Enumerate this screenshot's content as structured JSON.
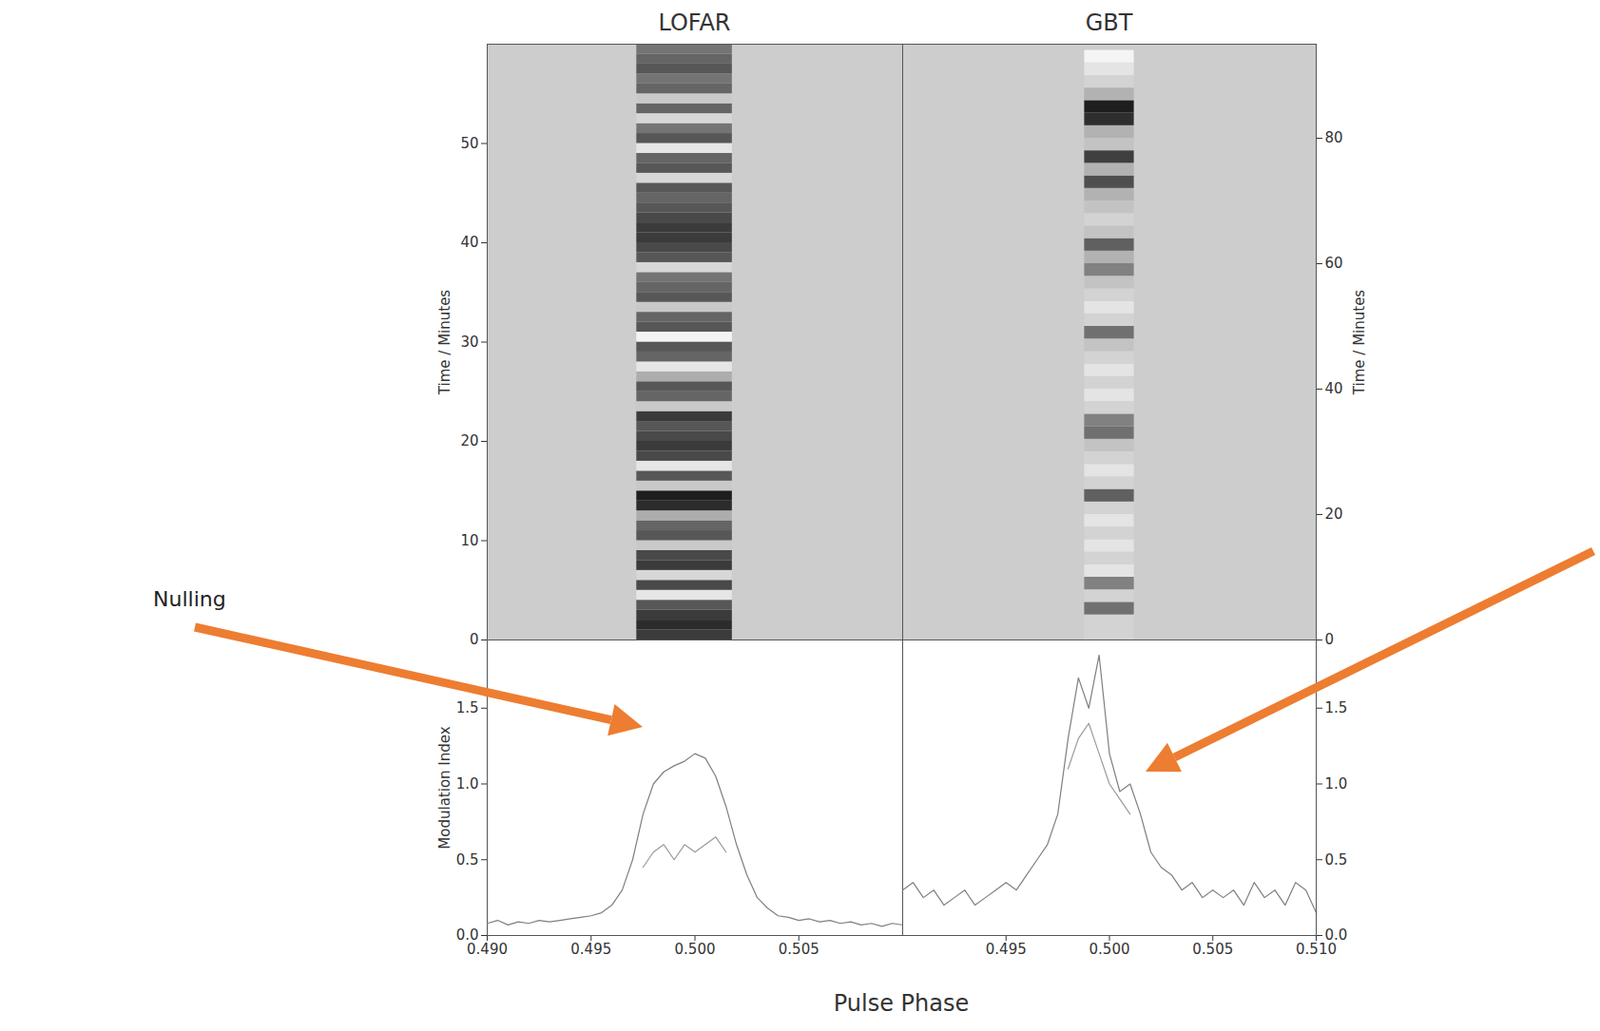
{
  "chart_data": [
    {
      "type": "waterfall",
      "title": "LOFAR",
      "ylabel": "Time / Minutes",
      "xlim": [
        0.49,
        0.51
      ],
      "ylim": [
        0,
        60
      ],
      "yticks": [
        0,
        10,
        20,
        30,
        40,
        50
      ],
      "tick_labels": "y",
      "pulse_window": [
        0.4972,
        0.5018
      ],
      "time_bins": [
        0,
        1,
        2,
        3,
        4,
        5,
        6,
        7,
        8,
        9,
        10,
        11,
        12,
        13,
        14,
        15,
        16,
        17,
        18,
        19,
        20,
        21,
        22,
        23,
        24,
        25,
        26,
        27,
        28,
        29,
        30,
        31,
        32,
        33,
        34,
        35,
        36,
        37,
        38,
        39,
        40,
        41,
        42,
        43,
        44,
        45,
        46,
        47,
        48,
        49,
        50,
        51,
        52,
        53,
        54,
        55,
        56,
        57,
        58,
        59,
        60
      ],
      "intensity": [
        0.7,
        0.75,
        0.7,
        0.6,
        0.1,
        0.65,
        0.15,
        0.7,
        0.65,
        0.2,
        0.6,
        0.55,
        0.3,
        0.75,
        0.8,
        0.2,
        0.6,
        0.1,
        0.65,
        0.7,
        0.65,
        0.6,
        0.7,
        0.2,
        0.55,
        0.6,
        0.3,
        0.1,
        0.55,
        0.6,
        0.05,
        0.6,
        0.55,
        0.2,
        0.6,
        0.55,
        0.5,
        0.15,
        0.6,
        0.65,
        0.7,
        0.7,
        0.65,
        0.6,
        0.55,
        0.6,
        0.15,
        0.6,
        0.55,
        0.1,
        0.6,
        0.5,
        0.15,
        0.55,
        0.2,
        0.55,
        0.5,
        0.6,
        0.55,
        0.5
      ]
    },
    {
      "type": "waterfall",
      "title": "GBT",
      "ylabel": "Time / Minutes",
      "xlim": [
        0.49,
        0.51
      ],
      "ylim": [
        0,
        95
      ],
      "yticks": [
        0,
        20,
        40,
        60,
        80
      ],
      "tick_labels": "y",
      "pulse_window": [
        0.4988,
        0.5012
      ],
      "time_bins": [
        0,
        2,
        4,
        6,
        8,
        10,
        12,
        14,
        16,
        18,
        20,
        22,
        24,
        26,
        28,
        30,
        32,
        34,
        36,
        38,
        40,
        42,
        44,
        46,
        48,
        50,
        52,
        54,
        56,
        58,
        60,
        62,
        64,
        66,
        68,
        70,
        72,
        74,
        76,
        78,
        80,
        82,
        84,
        86,
        88,
        90,
        92,
        94
      ],
      "intensity": [
        0.2,
        0.2,
        0.5,
        0.2,
        0.45,
        0.15,
        0.2,
        0.15,
        0.2,
        0.15,
        0.2,
        0.55,
        0.2,
        0.15,
        0.2,
        0.25,
        0.5,
        0.45,
        0.2,
        0.15,
        0.2,
        0.15,
        0.2,
        0.25,
        0.5,
        0.2,
        0.15,
        0.2,
        0.25,
        0.45,
        0.3,
        0.55,
        0.25,
        0.2,
        0.25,
        0.3,
        0.6,
        0.3,
        0.65,
        0.25,
        0.3,
        0.7,
        0.75,
        0.3,
        0.2,
        0.15,
        0.1
      ]
    },
    {
      "type": "line",
      "ylabel": "Modulation Index",
      "xlim": [
        0.49,
        0.51
      ],
      "ylim": [
        0,
        1.95
      ],
      "xticks": [
        {
          "value": 0.49,
          "label": "0.490"
        },
        0.495,
        {
          "value": 0.5,
          "label": "0.500"
        },
        0.505
      ],
      "yticks": [
        {
          "value": 0,
          "label": "0.0"
        },
        0.5,
        {
          "value": 1,
          "label": "1.0"
        },
        1.5
      ],
      "x": [
        0.49,
        0.4905,
        0.491,
        0.4915,
        0.492,
        0.4925,
        0.493,
        0.4935,
        0.494,
        0.4945,
        0.495,
        0.4955,
        0.496,
        0.4965,
        0.497,
        0.4975,
        0.498,
        0.4985,
        0.499,
        0.4995,
        0.5,
        0.5005,
        0.501,
        0.5015,
        0.502,
        0.5025,
        0.503,
        0.5035,
        0.504,
        0.5045,
        0.505,
        0.5055,
        0.506,
        0.5065,
        0.507,
        0.5075,
        0.508,
        0.5085,
        0.509,
        0.5095,
        0.51
      ],
      "series": [
        {
          "color": "#7f7f7f",
          "values": [
            0.08,
            0.1,
            0.07,
            0.09,
            0.08,
            0.1,
            0.09,
            0.1,
            0.11,
            0.12,
            0.13,
            0.15,
            0.2,
            0.3,
            0.5,
            0.8,
            1.0,
            1.08,
            1.12,
            1.15,
            1.2,
            1.17,
            1.05,
            0.85,
            0.6,
            0.4,
            0.25,
            0.18,
            0.13,
            0.12,
            0.1,
            0.11,
            0.09,
            0.1,
            0.08,
            0.09,
            0.07,
            0.08,
            0.06,
            0.08,
            0.07
          ]
        },
        {
          "color": "#9a9a9a",
          "values": [
            null,
            null,
            null,
            null,
            null,
            null,
            null,
            null,
            null,
            null,
            null,
            null,
            null,
            null,
            null,
            0.45,
            0.55,
            0.6,
            0.5,
            0.6,
            0.55,
            0.6,
            0.65,
            0.55,
            null,
            null,
            null,
            null,
            null,
            null,
            null,
            null,
            null,
            null,
            null,
            null,
            null,
            null,
            null,
            null,
            null
          ]
        }
      ]
    },
    {
      "type": "line",
      "xlim": [
        0.49,
        0.51
      ],
      "ylim": [
        0,
        1.95
      ],
      "xticks": [
        0.495,
        {
          "value": 0.5,
          "label": "0.500"
        },
        0.505,
        {
          "value": 0.51,
          "label": "0.510"
        }
      ],
      "yticks": [
        {
          "value": 0,
          "label": "0.0"
        },
        0.5,
        {
          "value": 1,
          "label": "1.0"
        },
        1.5
      ],
      "x": [
        0.49,
        0.4905,
        0.491,
        0.4915,
        0.492,
        0.4925,
        0.493,
        0.4935,
        0.494,
        0.4945,
        0.495,
        0.4955,
        0.496,
        0.4965,
        0.497,
        0.4975,
        0.498,
        0.4985,
        0.499,
        0.4995,
        0.5,
        0.5005,
        0.501,
        0.5015,
        0.502,
        0.5025,
        0.503,
        0.5035,
        0.504,
        0.5045,
        0.505,
        0.5055,
        0.506,
        0.5065,
        0.507,
        0.5075,
        0.508,
        0.5085,
        0.509,
        0.5095,
        0.51
      ],
      "series": [
        {
          "color": "#7f7f7f",
          "values": [
            0.3,
            0.35,
            0.25,
            0.3,
            0.2,
            0.25,
            0.3,
            0.2,
            0.25,
            0.3,
            0.35,
            0.3,
            0.4,
            0.5,
            0.6,
            0.8,
            1.3,
            1.7,
            1.5,
            1.85,
            1.2,
            0.95,
            1.0,
            0.8,
            0.55,
            0.45,
            0.4,
            0.3,
            0.35,
            0.25,
            0.3,
            0.25,
            0.3,
            0.2,
            0.35,
            0.25,
            0.3,
            0.2,
            0.35,
            0.3,
            0.15
          ]
        },
        {
          "color": "#9a9a9a",
          "values": [
            null,
            null,
            null,
            null,
            null,
            null,
            null,
            null,
            null,
            null,
            null,
            null,
            null,
            null,
            null,
            null,
            1.1,
            1.3,
            1.4,
            1.2,
            1.0,
            0.9,
            0.8,
            null,
            null,
            null,
            null,
            null,
            null,
            null,
            null,
            null,
            null,
            null,
            null,
            null,
            null,
            null,
            null,
            null,
            null
          ]
        }
      ]
    }
  ],
  "xlabel": "Pulse Phase",
  "annotations": [
    {
      "text": "Nulling"
    }
  ]
}
